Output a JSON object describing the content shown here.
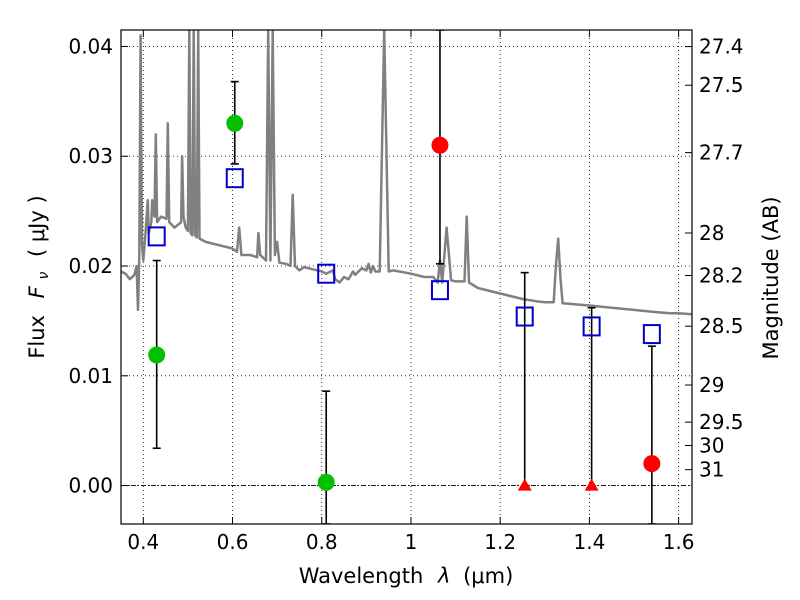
{
  "chart_data": {
    "type": "scatter",
    "xlabel_prefix": "Wavelength",
    "xlabel_symbol": "λ",
    "xlabel_unit": "(μm)",
    "ylabel_prefix": "Flux",
    "ylabel_symbol": "F",
    "ylabel_subscript": "ν",
    "ylabel_unit": "( μJy )",
    "y2label": "Magnitude (AB)",
    "xlim": [
      0.35,
      1.63
    ],
    "ylim": [
      -0.0035,
      0.0415
    ],
    "grid": true,
    "x_ticks": [
      {
        "value": 0.4,
        "label": "0.4"
      },
      {
        "value": 0.6,
        "label": "0.6"
      },
      {
        "value": 0.8,
        "label": "0.8"
      },
      {
        "value": 1.0,
        "label": "1"
      },
      {
        "value": 1.2,
        "label": "1.2"
      },
      {
        "value": 1.4,
        "label": "1.4"
      },
      {
        "value": 1.6,
        "label": "1.6"
      }
    ],
    "y_ticks": [
      {
        "value": 0.0,
        "label": "0.00"
      },
      {
        "value": 0.01,
        "label": "0.01"
      },
      {
        "value": 0.02,
        "label": "0.02"
      },
      {
        "value": 0.03,
        "label": "0.03"
      },
      {
        "value": 0.04,
        "label": "0.04"
      }
    ],
    "mag_ticks": [
      {
        "label": "27.4",
        "flux": 0.03999
      },
      {
        "label": "27.5",
        "flux": 0.03647
      },
      {
        "label": "27.7",
        "flux": 0.03033
      },
      {
        "label": "28",
        "flux": 0.02301
      },
      {
        "label": "28.2",
        "flux": 0.01914
      },
      {
        "label": "28.5",
        "flux": 0.01452
      },
      {
        "label": "29",
        "flux": 0.00916
      },
      {
        "label": "29.5",
        "flux": 0.00578
      },
      {
        "label": "30",
        "flux": 0.00365
      },
      {
        "label": "31",
        "flux": 0.00145
      }
    ],
    "model_spectrum": {
      "color": "#808080",
      "points": [
        [
          0.35,
          0.0195
        ],
        [
          0.36,
          0.0193
        ],
        [
          0.37,
          0.0188
        ],
        [
          0.38,
          0.0192
        ],
        [
          0.385,
          0.02
        ],
        [
          0.388,
          0.016
        ],
        [
          0.391,
          0.021
        ],
        [
          0.394,
          0.041
        ],
        [
          0.397,
          0.022
        ],
        [
          0.4,
          0.0205
        ],
        [
          0.405,
          0.023
        ],
        [
          0.41,
          0.026
        ],
        [
          0.412,
          0.023
        ],
        [
          0.418,
          0.024
        ],
        [
          0.42,
          0.026
        ],
        [
          0.425,
          0.0245
        ],
        [
          0.428,
          0.032
        ],
        [
          0.431,
          0.024
        ],
        [
          0.44,
          0.0245
        ],
        [
          0.452,
          0.0243
        ],
        [
          0.455,
          0.033
        ],
        [
          0.458,
          0.024
        ],
        [
          0.47,
          0.0235
        ],
        [
          0.485,
          0.024
        ],
        [
          0.487,
          0.03
        ],
        [
          0.49,
          0.0245
        ],
        [
          0.495,
          0.0235
        ],
        [
          0.5,
          0.0232
        ],
        [
          0.503,
          0.0415
        ],
        [
          0.506,
          0.023
        ],
        [
          0.51,
          0.0228
        ],
        [
          0.513,
          0.0415
        ],
        [
          0.516,
          0.0228
        ],
        [
          0.52,
          0.0226
        ],
        [
          0.523,
          0.0415
        ],
        [
          0.526,
          0.0225
        ],
        [
          0.54,
          0.0222
        ],
        [
          0.56,
          0.022
        ],
        [
          0.58,
          0.0218
        ],
        [
          0.6,
          0.0216
        ],
        [
          0.61,
          0.0213
        ],
        [
          0.615,
          0.0235
        ],
        [
          0.62,
          0.021
        ],
        [
          0.64,
          0.021
        ],
        [
          0.655,
          0.0208
        ],
        [
          0.658,
          0.023
        ],
        [
          0.662,
          0.021
        ],
        [
          0.67,
          0.0207
        ],
        [
          0.675,
          0.0205
        ],
        [
          0.68,
          0.0415
        ],
        [
          0.685,
          0.0205
        ],
        [
          0.69,
          0.0415
        ],
        [
          0.695,
          0.021
        ],
        [
          0.7,
          0.0222
        ],
        [
          0.705,
          0.0203
        ],
        [
          0.72,
          0.0202
        ],
        [
          0.73,
          0.02
        ],
        [
          0.735,
          0.0265
        ],
        [
          0.74,
          0.02
        ],
        [
          0.75,
          0.0196
        ],
        [
          0.76,
          0.0199
        ],
        [
          0.77,
          0.0198
        ],
        [
          0.78,
          0.0197
        ],
        [
          0.79,
          0.0196
        ],
        [
          0.8,
          0.0195
        ],
        [
          0.81,
          0.0193
        ],
        [
          0.825,
          0.0196
        ],
        [
          0.83,
          0.0188
        ],
        [
          0.84,
          0.0185
        ],
        [
          0.85,
          0.019
        ],
        [
          0.86,
          0.0188
        ],
        [
          0.87,
          0.0195
        ],
        [
          0.875,
          0.0192
        ],
        [
          0.88,
          0.0194
        ],
        [
          0.89,
          0.0198
        ],
        [
          0.9,
          0.0196
        ],
        [
          0.905,
          0.0202
        ],
        [
          0.91,
          0.0194
        ],
        [
          0.915,
          0.02
        ],
        [
          0.92,
          0.0195
        ],
        [
          0.93,
          0.0195
        ],
        [
          0.94,
          0.0415
        ],
        [
          0.95,
          0.0195
        ],
        [
          0.96,
          0.0196
        ],
        [
          1.0,
          0.0193
        ],
        [
          1.03,
          0.019
        ],
        [
          1.05,
          0.019
        ],
        [
          1.06,
          0.0185
        ],
        [
          1.065,
          0.0205
        ],
        [
          1.07,
          0.0185
        ],
        [
          1.08,
          0.0235
        ],
        [
          1.09,
          0.0187
        ],
        [
          1.1,
          0.0186
        ],
        [
          1.12,
          0.0186
        ],
        [
          1.125,
          0.0245
        ],
        [
          1.13,
          0.0185
        ],
        [
          1.15,
          0.018
        ],
        [
          1.2,
          0.0175
        ],
        [
          1.25,
          0.017
        ],
        [
          1.28,
          0.0168
        ],
        [
          1.3,
          0.0167
        ],
        [
          1.32,
          0.0167
        ],
        [
          1.325,
          0.02
        ],
        [
          1.33,
          0.0225
        ],
        [
          1.335,
          0.019
        ],
        [
          1.34,
          0.0166
        ],
        [
          1.4,
          0.0164
        ],
        [
          1.45,
          0.0162
        ],
        [
          1.5,
          0.016
        ],
        [
          1.55,
          0.0158
        ],
        [
          1.58,
          0.0157
        ],
        [
          1.6,
          0.0157
        ],
        [
          1.63,
          0.0156
        ]
      ]
    },
    "series": [
      {
        "marker": "circle",
        "color": "#00c000",
        "points": [
          {
            "x": 0.43,
            "y": 0.0119,
            "yerr_low": 0.0034,
            "yerr_high": 0.0205
          },
          {
            "x": 0.605,
            "y": 0.033,
            "yerr_low": 0.0293,
            "yerr_high": 0.0368
          },
          {
            "x": 0.81,
            "y": 0.0003,
            "yerr_low": -0.0035,
            "yerr_high": 0.0086
          }
        ]
      },
      {
        "marker": "circle",
        "color": "#ff0000",
        "points": [
          {
            "x": 1.065,
            "y": 0.031,
            "yerr_low": 0.0202,
            "yerr_high": 0.0415
          },
          {
            "x": 1.54,
            "y": 0.002,
            "yerr_low": -0.0035,
            "yerr_high": 0.0127
          }
        ]
      },
      {
        "marker": "triangle",
        "color": "#ff0000",
        "points": [
          {
            "x": 1.255,
            "y": 0.0,
            "yerr_low": 0.0,
            "yerr_high": 0.0194
          },
          {
            "x": 1.405,
            "y": 0.0,
            "yerr_low": 0.0,
            "yerr_high": 0.0162
          }
        ]
      },
      {
        "marker": "open-square",
        "color": "#0000cc",
        "points": [
          {
            "x": 0.43,
            "y": 0.0227
          },
          {
            "x": 0.605,
            "y": 0.028
          },
          {
            "x": 0.81,
            "y": 0.0193
          },
          {
            "x": 1.065,
            "y": 0.0178
          },
          {
            "x": 1.255,
            "y": 0.0154
          },
          {
            "x": 1.405,
            "y": 0.0145
          },
          {
            "x": 1.54,
            "y": 0.0138
          }
        ]
      }
    ]
  }
}
